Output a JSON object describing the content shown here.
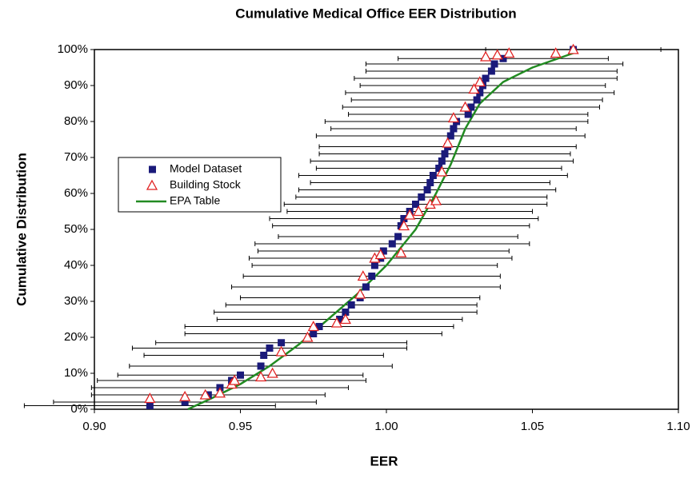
{
  "chart_data": {
    "type": "scatter",
    "title": "Cumulative Medical Office EER Distribution",
    "x_label": "EER",
    "y_label": "Cumulative Distribution",
    "xlim": [
      0.9,
      1.1
    ],
    "xticks": [
      {
        "value": 0.9,
        "label": "0.90"
      },
      0.95,
      {
        "value": 1.0,
        "label": "1.00"
      },
      1.05,
      {
        "value": 1.1,
        "label": "1.10"
      }
    ],
    "ylim": [
      0,
      100
    ],
    "yticks": [
      {
        "value": 0,
        "label": "0%"
      },
      {
        "value": 10,
        "label": "10%"
      },
      {
        "value": 20,
        "label": "20%"
      },
      {
        "value": 30,
        "label": "30%"
      },
      {
        "value": 40,
        "label": "40%"
      },
      {
        "value": 50,
        "label": "50%"
      },
      {
        "value": 60,
        "label": "60%"
      },
      {
        "value": 70,
        "label": "70%"
      },
      {
        "value": 80,
        "label": "80%"
      },
      {
        "value": 90,
        "label": "90%"
      },
      {
        "value": 100,
        "label": "100%"
      }
    ],
    "series": [
      {
        "name": "Model Dataset",
        "color": "#1a1a7a",
        "marker": "square",
        "x": [
          0.919,
          0.931,
          0.939,
          0.943,
          0.947,
          0.95,
          0.957,
          0.958,
          0.96,
          0.964,
          0.975,
          0.977,
          0.984,
          0.986,
          0.988,
          0.991,
          0.993,
          0.995,
          0.996,
          0.998,
          0.999,
          1.002,
          1.004,
          1.005,
          1.006,
          1.008,
          1.01,
          1.012,
          1.014,
          1.015,
          1.016,
          1.018,
          1.019,
          1.02,
          1.021,
          1.022,
          1.023,
          1.024,
          1.028,
          1.029,
          1.031,
          1.032,
          1.033,
          1.034,
          1.036,
          1.037,
          1.04,
          1.064
        ],
        "values": [
          1,
          2,
          4,
          6,
          8,
          9.5,
          12,
          15,
          17,
          18.5,
          21,
          23,
          25,
          27,
          29,
          31,
          34,
          37,
          40,
          42,
          44,
          46,
          48,
          51,
          53,
          55,
          57,
          59,
          61,
          63,
          65,
          67,
          69,
          71,
          73,
          76,
          78,
          80,
          82,
          84,
          86,
          88,
          90,
          92,
          94,
          96,
          97.5,
          100
        ],
        "xerr": [
          0.043,
          0.045,
          0.04,
          0.044,
          0.046,
          0.042,
          0.045,
          0.041,
          0.047,
          0.043,
          0.044,
          0.046,
          0.042,
          0.045,
          0.043,
          0.041,
          0.046,
          0.044,
          0.042,
          0.045,
          0.043,
          0.047,
          0.041,
          0.044,
          0.046,
          0.042,
          0.045,
          0.043,
          0.044,
          0.041,
          0.046,
          0.042,
          0.045,
          0.043,
          0.044,
          0.046,
          0.042,
          0.045,
          0.041,
          0.044,
          0.043,
          0.046,
          0.042,
          0.045,
          0.043,
          0.044,
          0.036,
          0.03
        ]
      },
      {
        "name": "Building Stock",
        "color": "#e02020",
        "marker": "triangle",
        "x": [
          0.919,
          0.931,
          0.938,
          0.943,
          0.947,
          0.948,
          0.957,
          0.961,
          0.964,
          0.973,
          0.975,
          0.983,
          0.986,
          0.991,
          0.992,
          0.996,
          0.998,
          1.005,
          1.006,
          1.008,
          1.011,
          1.015,
          1.017,
          1.019,
          1.021,
          1.023,
          1.027,
          1.03,
          1.032,
          1.034,
          1.038,
          1.042,
          1.058,
          1.064
        ],
        "values": [
          3,
          3.5,
          4,
          4.5,
          7,
          8,
          9,
          10,
          16,
          20,
          23,
          24,
          25,
          32,
          37,
          42,
          43,
          43.5,
          51,
          54,
          55,
          57,
          58,
          66,
          74,
          81,
          84,
          89,
          91,
          98,
          98.5,
          99,
          99,
          100
        ]
      },
      {
        "name": "EPA Table",
        "color": "#228b22",
        "marker": "line",
        "x": [
          0.932,
          0.94,
          0.95,
          0.96,
          0.97,
          0.98,
          0.99,
          1.0,
          1.01,
          1.017,
          1.022,
          1.027,
          1.032,
          1.04,
          1.05,
          1.064
        ],
        "values": [
          0,
          3,
          7,
          12,
          18,
          25,
          32,
          40,
          50,
          60,
          68,
          78,
          85,
          91,
          95,
          99
        ]
      }
    ]
  }
}
